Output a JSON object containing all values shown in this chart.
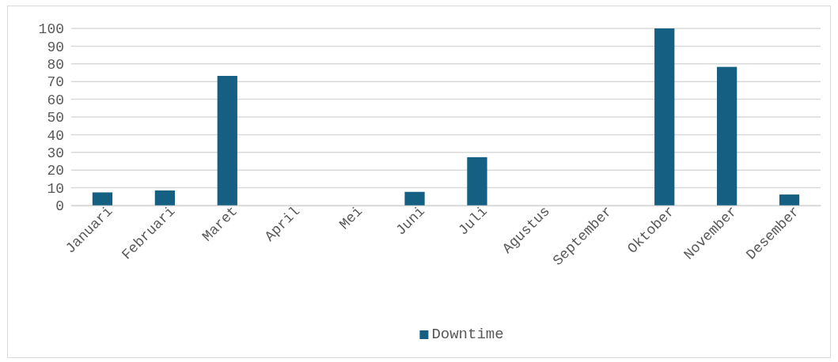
{
  "chart_data": {
    "type": "bar",
    "categories": [
      "Januari",
      "Februari",
      "Maret",
      "April",
      "Mei",
      "Juni",
      "Juli",
      "Agustus",
      "September",
      "Oktober",
      "November",
      "Desember"
    ],
    "series": [
      {
        "name": "Downtime",
        "color": "#156082",
        "values": [
          7.4,
          8.5,
          73.2,
          0,
          0,
          7.7,
          27.3,
          0,
          0,
          100,
          78.3,
          6.2
        ]
      }
    ],
    "ylim": [
      0,
      100
    ],
    "yticks": [
      0,
      10,
      20,
      30,
      40,
      50,
      60,
      70,
      80,
      90,
      100
    ],
    "grid": "y",
    "legend": "bottom"
  }
}
